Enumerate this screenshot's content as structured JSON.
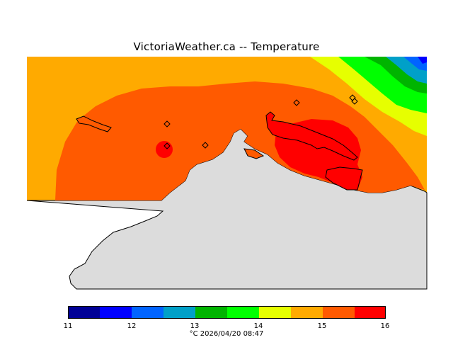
{
  "title": "VictoriaWeather.ca  --  Temperature",
  "colors": {
    "land": "#dcdcdc",
    "band_14_5": "#ffaa00",
    "band_15": "#ff5a00",
    "band_15_5": "#ff0000",
    "band_14": "#e6ff00",
    "band_13_5": "#00ff00",
    "band_13": "#00b400",
    "band_12_5": "#00a0c8",
    "band_12": "#0064ff",
    "band_11_5": "#0000ff"
  },
  "legend": {
    "colors": [
      "#000096",
      "#0000ff",
      "#0064ff",
      "#00a0c8",
      "#00b400",
      "#00ff00",
      "#e6ff00",
      "#ffaa00",
      "#ff5a00",
      "#ff0000"
    ],
    "ticks": [
      "11",
      "12",
      "13",
      "14",
      "15",
      "16"
    ]
  },
  "footer": "°C  2026/04/20 08:47"
}
